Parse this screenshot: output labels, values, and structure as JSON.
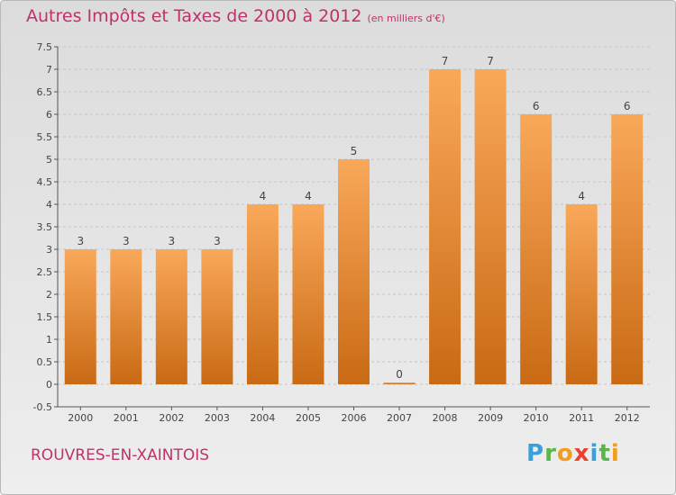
{
  "header": {
    "title": "Autres Impôts et Taxes de 2000 à 2012",
    "subtitle": "(en milliers d'€)"
  },
  "footer": {
    "commune": "ROUVRES-EN-XAINTOIS",
    "logo": {
      "letters": [
        "P",
        "r",
        "o",
        "x",
        "i",
        "t",
        "i"
      ],
      "colors": [
        "#3aa0dc",
        "#5ab54a",
        "#f39c1d",
        "#e8412e",
        "#3aa0dc",
        "#5ab54a",
        "#f39c1d"
      ]
    }
  },
  "colors": {
    "title": "#c0306a",
    "bar_light": "#f9a85a",
    "bar_dark": "#c96a14",
    "axis": "#555555"
  },
  "chart_data": {
    "type": "bar",
    "title": "Autres Impôts et Taxes de 2000 à 2012",
    "subtitle": "(en milliers d'€)",
    "categories": [
      "2000",
      "2001",
      "2002",
      "2003",
      "2004",
      "2005",
      "2006",
      "2007",
      "2008",
      "2009",
      "2010",
      "2011",
      "2012"
    ],
    "values": [
      3,
      3,
      3,
      3,
      4,
      4,
      5,
      0,
      7,
      7,
      6,
      4,
      6
    ],
    "data_labels": [
      "3",
      "3",
      "3",
      "3",
      "4",
      "4",
      "5",
      "0",
      "7",
      "7",
      "6",
      "4",
      "6"
    ],
    "ylim": [
      -0.5,
      7.5
    ],
    "yticks": [
      "-0.5",
      "0",
      "0.5",
      "1",
      "1.5",
      "2",
      "2.5",
      "3",
      "3.5",
      "4",
      "4.5",
      "5",
      "5.5",
      "6",
      "6.5",
      "7",
      "7.5"
    ],
    "ytick_values": [
      -0.5,
      0,
      0.5,
      1,
      1.5,
      2,
      2.5,
      3,
      3.5,
      4,
      4.5,
      5,
      5.5,
      6,
      6.5,
      7,
      7.5
    ],
    "xlabel": "",
    "ylabel": "",
    "grid": "horizontal dashed"
  }
}
